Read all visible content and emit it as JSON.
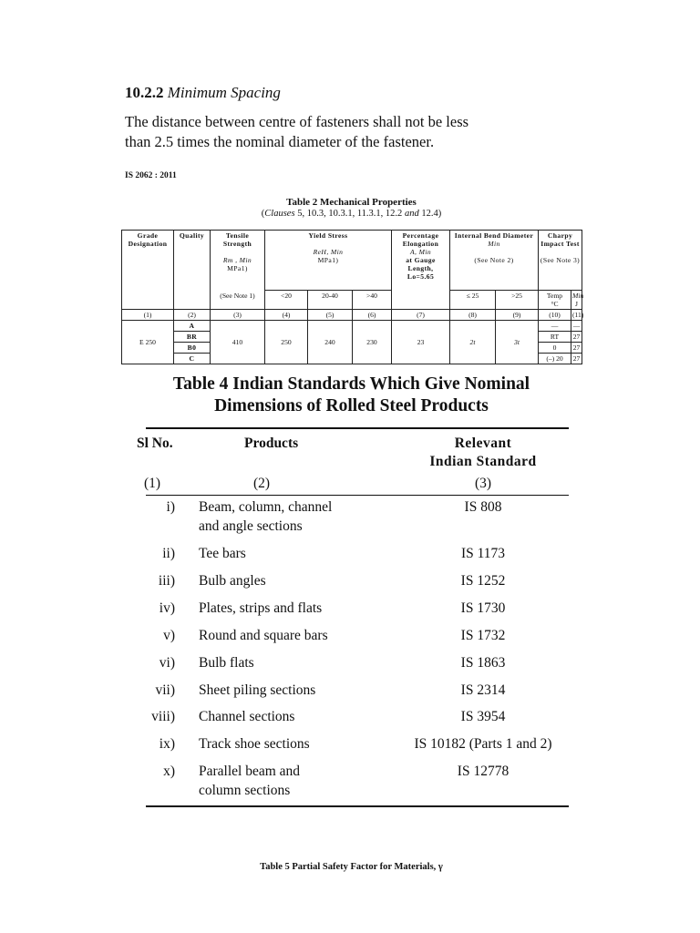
{
  "section": {
    "number": "10.2.2",
    "title": "Minimum Spacing",
    "text": "The distance between centre of fasteners shall not be less than 2.5 times the nominal diameter of the fastener."
  },
  "standard_id": "IS 2062 : 2011",
  "table2": {
    "title": "Table 2 Mechanical Properties",
    "clauses_word": "Clauses",
    "clauses": " 5, 10.3, 10.3.1, 11.3.1, 12.2 ",
    "and": "and",
    " last": " 12.4",
    "headers": {
      "grade": "Grade Designation",
      "quality": "Quality",
      "tensile": "Tensile Strength",
      "tensile_sym": "Rm , Min",
      "tensile_unit": "MPa1)",
      "tensile_note": "(See Note 1)",
      "yield": "Yield Stress",
      "yield_sym": "ReH, Min",
      "yield_unit": "MPa1)",
      "yield_sub": [
        "<20",
        "20-40",
        ">40"
      ],
      "elong": "Percentage Elongation",
      "elong_sym": "A, Min",
      "elong_gauge": "at Gauge Length,",
      "elong_lo": "Lo=5.65",
      "bend": "Internal Bend Diameter",
      "bend_min": "Min",
      "bend_note": "(See Note 2)",
      "bend_sub": [
        "≤ 25",
        ">25"
      ],
      "charpy": "Charpy Impact Test",
      "charpy_note": "(See Note 3)",
      "temp": "Temp",
      "temp_unit": "°C",
      "min": "Min",
      "j": "J"
    },
    "col_numbers": [
      "(1)",
      "(2)",
      "(3)",
      "(4)",
      "(5)",
      "(6)",
      "(7)",
      "(8)",
      "(9)",
      "(10)",
      "(11)"
    ],
    "row": {
      "grade": "E 250",
      "qualities": [
        "A",
        "BR",
        "B0",
        "C"
      ],
      "tensile": "410",
      "yield": [
        "250",
        "240",
        "230"
      ],
      "elong": "23",
      "bend": [
        "2t",
        "3t"
      ],
      "temps": [
        "—",
        "RT",
        "0",
        "(–) 20"
      ],
      "energies": [
        "—",
        "27",
        "27",
        "27"
      ]
    }
  },
  "table4": {
    "title_line1": "Table 4 Indian Standards Which Give Nominal",
    "title_line2": "Dimensions of Rolled Steel Products",
    "headers": {
      "sl": "Sl No.",
      "products": "Products",
      "standard_l1": "Relevant",
      "standard_l2": "Indian Standard",
      "nums": [
        "(1)",
        "(2)",
        "(3)"
      ]
    },
    "rows": [
      {
        "sl": "i)",
        "product": "Beam, column, channel",
        "product2": "and angle sections",
        "std": "IS 808"
      },
      {
        "sl": "ii)",
        "product": "Tee bars",
        "std": "IS 1173"
      },
      {
        "sl": "iii)",
        "product": "Bulb angles",
        "std": "IS 1252"
      },
      {
        "sl": "iv)",
        "product": "Plates, strips and flats",
        "std": "IS 1730"
      },
      {
        "sl": "v)",
        "product": "Round and square bars",
        "std": "IS 1732"
      },
      {
        "sl": "vi)",
        "product": "Bulb flats",
        "std": "IS 1863"
      },
      {
        "sl": "vii)",
        "product": "Sheet piling sections",
        "std": "IS 2314"
      },
      {
        "sl": "viii)",
        "product": "Channel sections",
        "std": "IS 3954"
      },
      {
        "sl": "ix)",
        "product": "Track shoe sections",
        "std": "IS 10182 (Parts 1 and 2)"
      },
      {
        "sl": "x)",
        "product": "Parallel beam and",
        "product2": "column sections",
        "std": "IS 12778"
      }
    ]
  },
  "table5_caption": "Table 5 Partial Safety Factor for Materials, γ"
}
